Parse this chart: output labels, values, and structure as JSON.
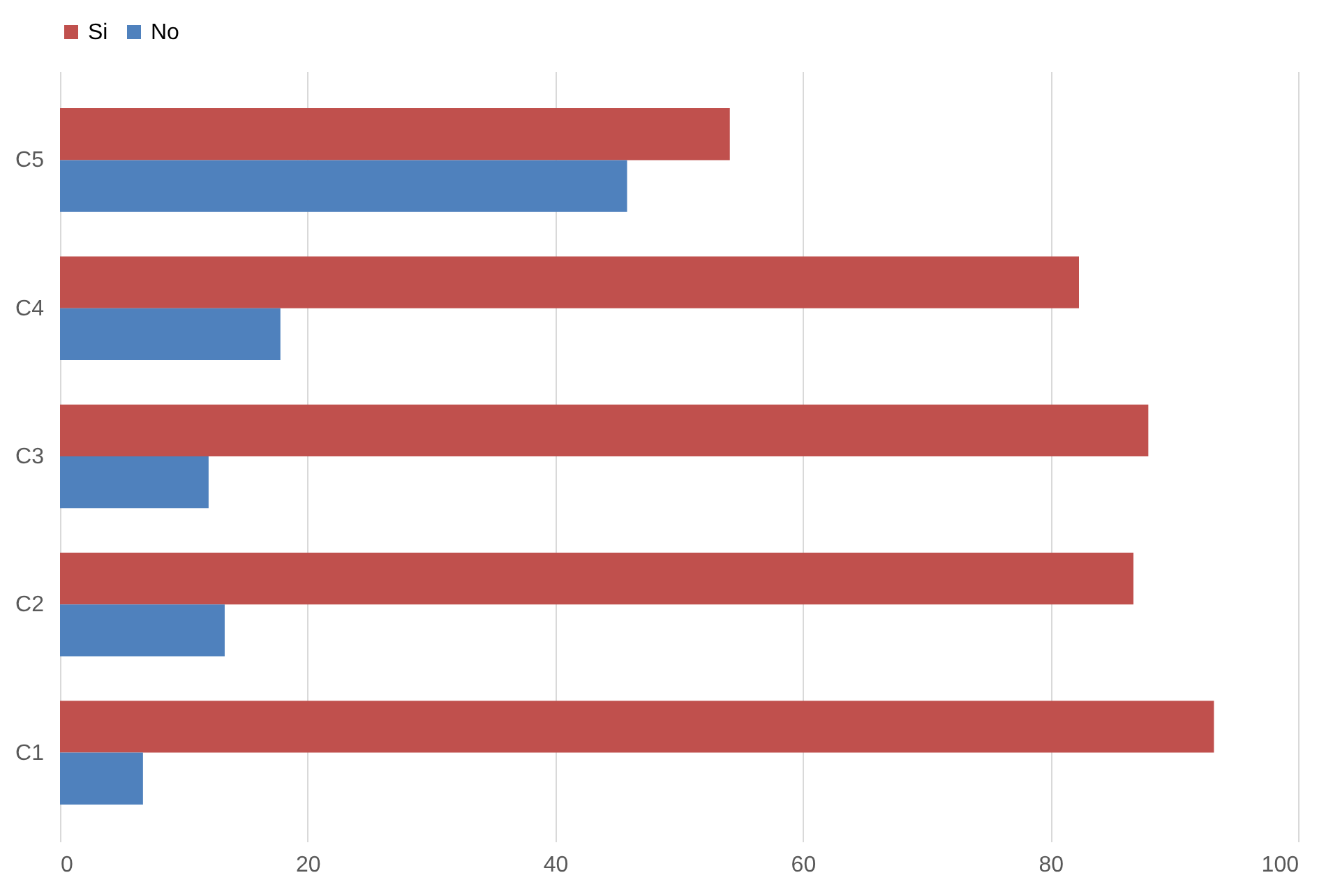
{
  "chart_data": {
    "type": "bar",
    "orientation": "horizontal",
    "categories": [
      "C5",
      "C4",
      "C3",
      "C2",
      "C1"
    ],
    "series": [
      {
        "name": "Si",
        "color": "#c0504d",
        "values": [
          54.1,
          82.3,
          87.9,
          86.7,
          93.2
        ]
      },
      {
        "name": "No",
        "color": "#4f81bd",
        "values": [
          45.8,
          17.8,
          12.0,
          13.3,
          6.7
        ]
      }
    ],
    "xlim": [
      0,
      100
    ],
    "xticks": [
      0,
      20,
      40,
      60,
      80,
      100
    ],
    "grid": "x",
    "legend": "top"
  }
}
